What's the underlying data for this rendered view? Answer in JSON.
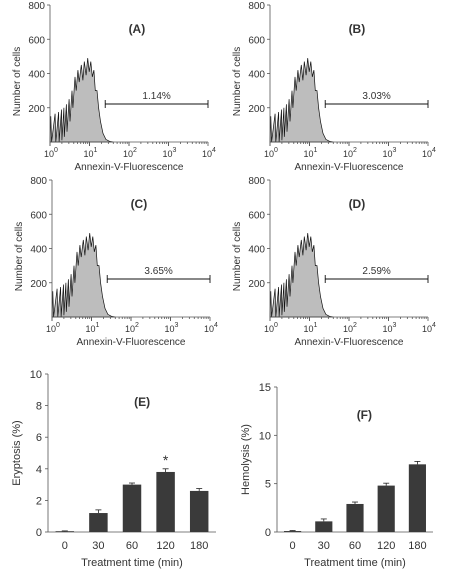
{
  "chart_data": [
    {
      "type": "area",
      "panel": "(A)",
      "xlabel": "Annexin-V-Fluorescence",
      "ylabel": "Number of cells",
      "ylim": [
        0,
        800
      ],
      "yticks": [
        "800",
        "600",
        "400",
        "200"
      ],
      "xticks": [
        "10",
        "10",
        "10",
        "10",
        "10"
      ],
      "xtick_exp": [
        "0",
        "1",
        "2",
        "3",
        "4"
      ],
      "gate_label": "1.14%",
      "gate_range": [
        25,
        10000
      ]
    },
    {
      "type": "area",
      "panel": "(B)",
      "xlabel": "Annexin-V-Fluorescence",
      "ylabel": "Number of cells",
      "ylim": [
        0,
        800
      ],
      "yticks": [
        "800",
        "600",
        "400",
        "200"
      ],
      "xticks": [
        "10",
        "10",
        "10",
        "10",
        "10"
      ],
      "xtick_exp": [
        "0",
        "1",
        "2",
        "3",
        "4"
      ],
      "gate_label": "3.03%",
      "gate_range": [
        25,
        10000
      ]
    },
    {
      "type": "area",
      "panel": "(C)",
      "xlabel": "Annexin-V-Fluorescence",
      "ylabel": "Number of cells",
      "ylim": [
        0,
        800
      ],
      "yticks": [
        "800",
        "600",
        "400",
        "200"
      ],
      "xticks": [
        "10",
        "10",
        "10",
        "10",
        "10"
      ],
      "xtick_exp": [
        "0",
        "1",
        "2",
        "3",
        "4"
      ],
      "gate_label": "3.65%",
      "gate_range": [
        25,
        10000
      ]
    },
    {
      "type": "area",
      "panel": "(D)",
      "xlabel": "Annexin-V-Fluorescence",
      "ylabel": "Number of cells",
      "ylim": [
        0,
        800
      ],
      "yticks": [
        "800",
        "600",
        "400",
        "200"
      ],
      "xticks": [
        "10",
        "10",
        "10",
        "10",
        "10"
      ],
      "xtick_exp": [
        "0",
        "1",
        "2",
        "3",
        "4"
      ],
      "gate_label": "2.59%",
      "gate_range": [
        25,
        10000
      ]
    },
    {
      "type": "bar",
      "panel": "(E)",
      "xlabel": "Treatment time (min)",
      "ylabel": "Eryptosis (%)",
      "categories": [
        "0",
        "30",
        "60",
        "120",
        "180"
      ],
      "values": [
        0.05,
        1.2,
        3.0,
        3.8,
        2.6
      ],
      "errors": [
        0.02,
        0.2,
        0.1,
        0.2,
        0.15
      ],
      "annotations": [
        "",
        "",
        "",
        "*",
        ""
      ],
      "ylim": [
        0,
        10
      ],
      "yticks": [
        "0",
        "2",
        "4",
        "6",
        "8",
        "10"
      ],
      "yticks_values": [
        0,
        2,
        4,
        6,
        8,
        10
      ]
    },
    {
      "type": "bar",
      "panel": "(F)",
      "xlabel": "Treatment time (min)",
      "ylabel": "Hemolysis (%)",
      "categories": [
        "0",
        "30",
        "60",
        "120",
        "180"
      ],
      "values": [
        0.1,
        1.1,
        2.9,
        4.8,
        7.0
      ],
      "errors": [
        0.05,
        0.25,
        0.2,
        0.25,
        0.3
      ],
      "annotations": [
        "",
        "",
        "",
        "",
        ""
      ],
      "ylim": [
        0,
        15
      ],
      "yticks": [
        "0",
        "5",
        "10",
        "15"
      ],
      "yticks_values": [
        0,
        5,
        10,
        15
      ]
    }
  ]
}
